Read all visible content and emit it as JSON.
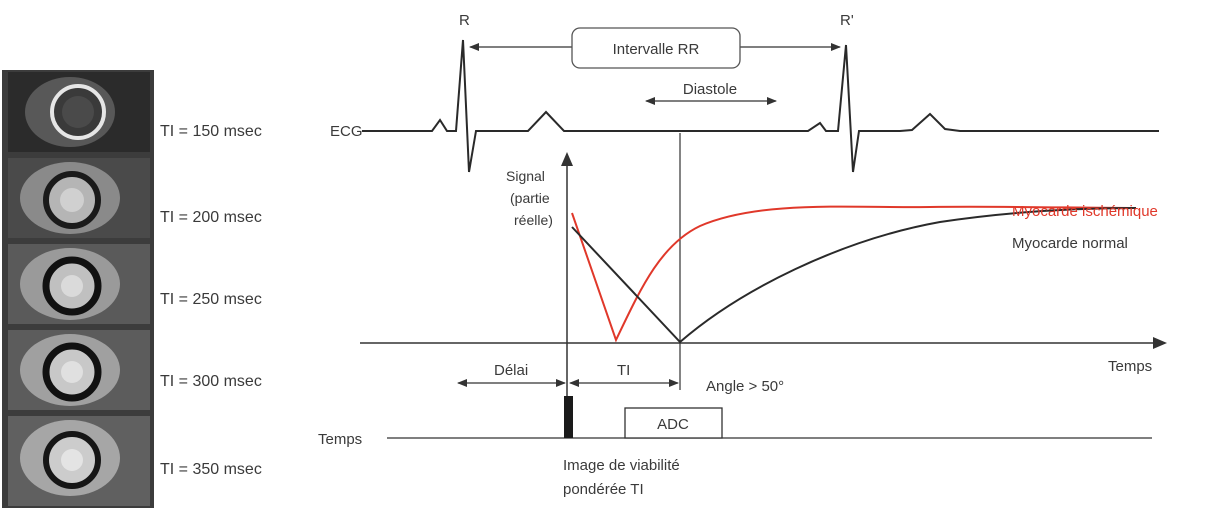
{
  "ti_labels": [
    "TI = 150 msec",
    "TI = 200 msec",
    "TI = 250 msec",
    "TI = 300 msec",
    "TI = 350 msec"
  ],
  "ecg": {
    "r_label": "R",
    "r_prime_label": "R'",
    "rr_interval_label": "Intervalle RR",
    "diastole_label": "Diastole",
    "ecg_label": "ECG"
  },
  "plot": {
    "y_axis_label_line1": "Signal",
    "y_axis_label_line2": "(partie",
    "y_axis_label_line3": "réelle)",
    "x_axis_label": "Temps",
    "ischemic_label": "Myocarde ischémique",
    "normal_label": "Myocarde normal",
    "delay_label": "Délai",
    "ti_label": "TI",
    "angle_label": "Angle > 50°"
  },
  "timeline": {
    "label": "Temps",
    "adc_label": "ADC",
    "caption_line1": "Image de viabilité",
    "caption_line2": "pondérée TI"
  },
  "colors": {
    "ischemic": "#e0382a",
    "normal": "#2a2a2a",
    "lines": "#333333"
  }
}
